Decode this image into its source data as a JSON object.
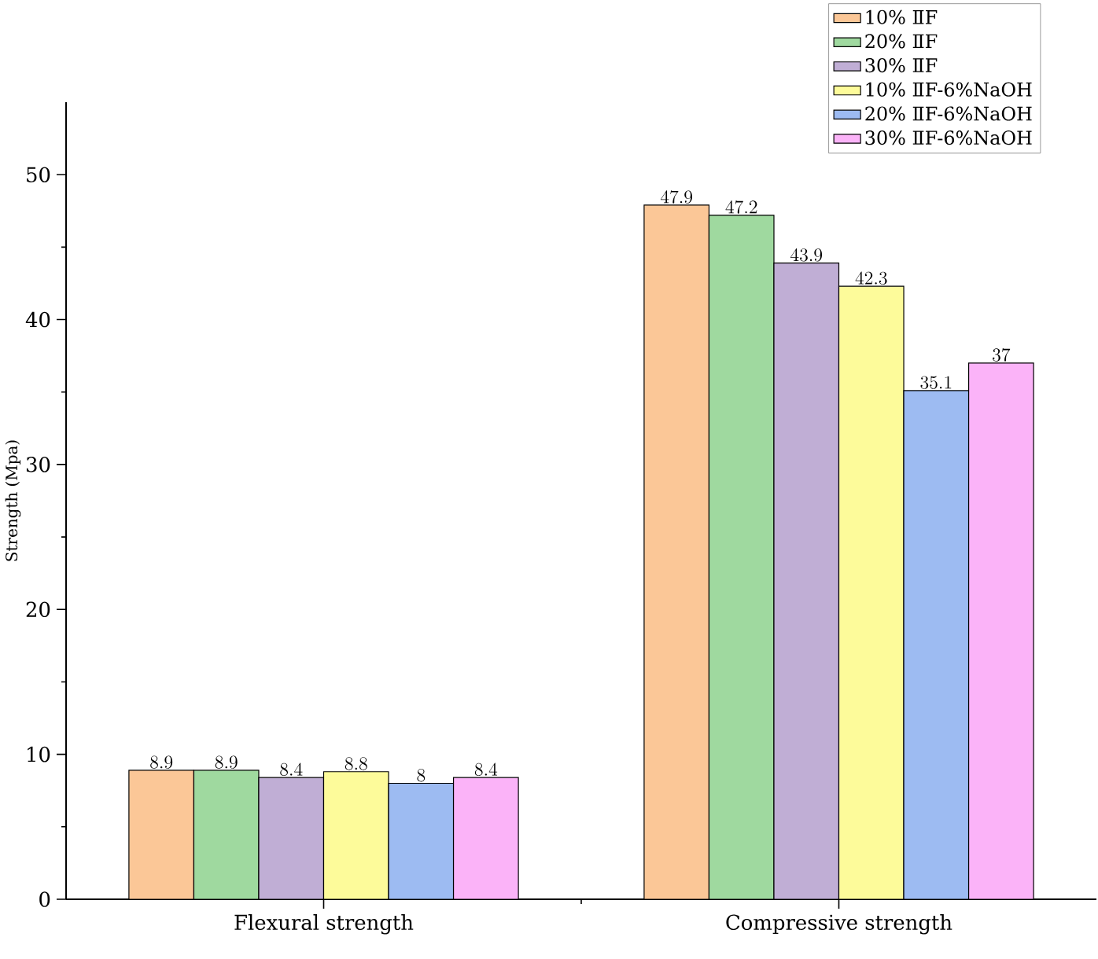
{
  "chart_data": {
    "type": "bar",
    "ylabel": "Strength (Mpa)",
    "categories": [
      "Flexural strength",
      "Compressive strength"
    ],
    "series": [
      {
        "name": "10% ⅡF",
        "color": "#fbc797",
        "values": [
          8.9,
          47.9
        ]
      },
      {
        "name": "20% ⅡF",
        "color": "#9fd99f",
        "values": [
          8.9,
          47.2
        ]
      },
      {
        "name": "30% ⅡF",
        "color": "#c0aed5",
        "values": [
          8.4,
          43.9
        ]
      },
      {
        "name": "10% ⅡF-6%NaOH",
        "color": "#fdfb9a",
        "values": [
          8.8,
          42.3
        ]
      },
      {
        "name": "20% ⅡF-6%NaOH",
        "color": "#9dbbf2",
        "values": [
          8,
          35.1
        ]
      },
      {
        "name": "30% ⅡF-6%NaOH",
        "color": "#fbb3f8",
        "values": [
          8.4,
          37
        ]
      }
    ],
    "ylim": [
      0,
      55
    ],
    "yticks": [
      0,
      10,
      20,
      30,
      40,
      50
    ],
    "data_labels": true,
    "legend": "top right",
    "grid": false
  }
}
